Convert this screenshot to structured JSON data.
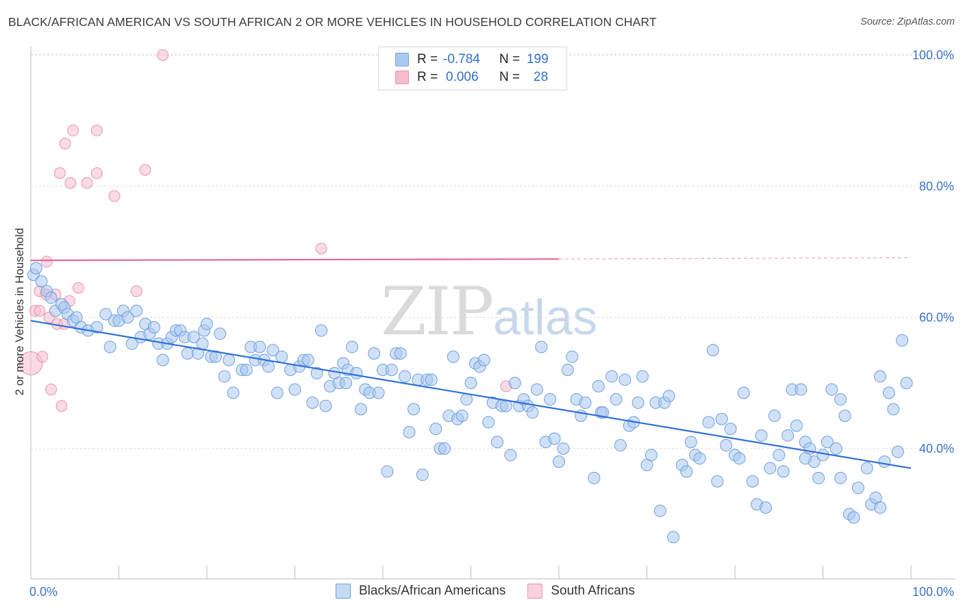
{
  "title": "BLACK/AFRICAN AMERICAN VS SOUTH AFRICAN 2 OR MORE VEHICLES IN HOUSEHOLD CORRELATION CHART",
  "source": "Source: ZipAtlas.com",
  "watermark": {
    "zip": "ZIP",
    "atlas": "atlas"
  },
  "legend": {
    "rows": [
      {
        "r_label": "R =",
        "r_value": "-0.784",
        "n_label": "N =",
        "n_value": "199"
      },
      {
        "r_label": "R =",
        "r_value": "0.006",
        "n_label": "N =",
        "n_value": "28"
      }
    ]
  },
  "bottom_legend": [
    "Blacks/African Americans",
    "South Africans"
  ],
  "colors": {
    "blue_fill": "#a9c8f0",
    "blue_stroke": "#6f9fdc",
    "blue_line": "#2f6fd6",
    "pink_fill": "#f6bccd",
    "pink_stroke": "#e795ae",
    "pink_line": "#e5679a",
    "grid": "#dcdcdc",
    "axis_text": "#3a73c9"
  },
  "chart_data": {
    "type": "scatter",
    "title": "BLACK/AFRICAN AMERICAN VS SOUTH AFRICAN 2 OR MORE VEHICLES IN HOUSEHOLD CORRELATION CHART",
    "xlabel": "",
    "ylabel": "2 or more Vehicles in Household",
    "xlim": [
      0,
      100
    ],
    "ylim": [
      20,
      102
    ],
    "x_tick_labels": [
      "0.0%",
      "100.0%"
    ],
    "y_ticks": [
      40,
      60,
      80,
      100
    ],
    "y_tick_labels": [
      "40.0%",
      "60.0%",
      "80.0%",
      "100.0%"
    ],
    "grid": true,
    "legend_position": "top-center",
    "series": [
      {
        "name": "Blacks/African Americans",
        "color": "#a9c8f0",
        "trend": {
          "x": [
            0,
            100
          ],
          "y": [
            59.5,
            37.0
          ],
          "r": -0.784,
          "n": 199
        },
        "points": [
          [
            0.3,
            66.5
          ],
          [
            0.6,
            67.5
          ],
          [
            1.2,
            65.5
          ],
          [
            1.8,
            64
          ],
          [
            2.3,
            63
          ],
          [
            2.8,
            61
          ],
          [
            3.5,
            62
          ],
          [
            3.8,
            61.5
          ],
          [
            4.2,
            60.5
          ],
          [
            4.8,
            59.5
          ],
          [
            5.2,
            60
          ],
          [
            5.7,
            58.5
          ],
          [
            6.5,
            58
          ],
          [
            7.5,
            58.5
          ],
          [
            8.5,
            60.5
          ],
          [
            9,
            55.5
          ],
          [
            9.5,
            59.5
          ],
          [
            10,
            59.5
          ],
          [
            10.5,
            61
          ],
          [
            11,
            60
          ],
          [
            11.5,
            56
          ],
          [
            12,
            61
          ],
          [
            12.5,
            57
          ],
          [
            13,
            59
          ],
          [
            13.5,
            57.5
          ],
          [
            14,
            58.5
          ],
          [
            14.5,
            56
          ],
          [
            15,
            53.5
          ],
          [
            15.5,
            56
          ],
          [
            16,
            57
          ],
          [
            16.5,
            58
          ],
          [
            17,
            58
          ],
          [
            17.5,
            57
          ],
          [
            17.8,
            54.5
          ],
          [
            18.5,
            57
          ],
          [
            19,
            54.5
          ],
          [
            19.5,
            56
          ],
          [
            19.7,
            58
          ],
          [
            20,
            59
          ],
          [
            20.5,
            54
          ],
          [
            21,
            54
          ],
          [
            21.5,
            57.5
          ],
          [
            22,
            51
          ],
          [
            22.5,
            53.5
          ],
          [
            23,
            48.5
          ],
          [
            24,
            52
          ],
          [
            24.5,
            52
          ],
          [
            25,
            55.5
          ],
          [
            25.5,
            53.5
          ],
          [
            26,
            55.5
          ],
          [
            26.5,
            53.5
          ],
          [
            27,
            52.5
          ],
          [
            27.5,
            55
          ],
          [
            28,
            48.5
          ],
          [
            28.5,
            54
          ],
          [
            29.5,
            52
          ],
          [
            30,
            49
          ],
          [
            30.5,
            52.5
          ],
          [
            31,
            53.5
          ],
          [
            31.5,
            53.5
          ],
          [
            32,
            47
          ],
          [
            32.5,
            51.5
          ],
          [
            33,
            58
          ],
          [
            33.5,
            46.5
          ],
          [
            34,
            49.5
          ],
          [
            34.5,
            51.5
          ],
          [
            35,
            50
          ],
          [
            35.5,
            53
          ],
          [
            35.8,
            50
          ],
          [
            36,
            52
          ],
          [
            36.5,
            55.5
          ],
          [
            37,
            51.5
          ],
          [
            37.5,
            46
          ],
          [
            38,
            49
          ],
          [
            38.5,
            48.5
          ],
          [
            39,
            54.5
          ],
          [
            39.5,
            48.5
          ],
          [
            40,
            52
          ],
          [
            40.5,
            36.5
          ],
          [
            41,
            52
          ],
          [
            41.5,
            54.5
          ],
          [
            42,
            54.5
          ],
          [
            42.5,
            51
          ],
          [
            43,
            42.5
          ],
          [
            43.5,
            46
          ],
          [
            44,
            50.5
          ],
          [
            44.5,
            36
          ],
          [
            45,
            50.5
          ],
          [
            45.5,
            50.5
          ],
          [
            46,
            43
          ],
          [
            46.5,
            40
          ],
          [
            47,
            40
          ],
          [
            47.5,
            45
          ],
          [
            48,
            54
          ],
          [
            48.5,
            44.5
          ],
          [
            49,
            45
          ],
          [
            49.5,
            47.5
          ],
          [
            50,
            50
          ],
          [
            50.5,
            53
          ],
          [
            51,
            52.5
          ],
          [
            51.5,
            53.5
          ],
          [
            52,
            44
          ],
          [
            52.5,
            47
          ],
          [
            53,
            41
          ],
          [
            53.5,
            46.5
          ],
          [
            54,
            46.5
          ],
          [
            54.5,
            39
          ],
          [
            55,
            50
          ],
          [
            55.5,
            46.5
          ],
          [
            56,
            47.5
          ],
          [
            56.5,
            46.5
          ],
          [
            57,
            45.5
          ],
          [
            57.5,
            49
          ],
          [
            58,
            55.5
          ],
          [
            58.5,
            41
          ],
          [
            59,
            47.5
          ],
          [
            59.5,
            41.5
          ],
          [
            60,
            38
          ],
          [
            60.5,
            40
          ],
          [
            61,
            52
          ],
          [
            61.5,
            54
          ],
          [
            62,
            47.5
          ],
          [
            62.5,
            45
          ],
          [
            63,
            47
          ],
          [
            64,
            35.5
          ],
          [
            64.5,
            49.5
          ],
          [
            64.8,
            45.5
          ],
          [
            65,
            45.5
          ],
          [
            66,
            51
          ],
          [
            66.5,
            47.5
          ],
          [
            67,
            40.5
          ],
          [
            67.5,
            50.5
          ],
          [
            68,
            43.5
          ],
          [
            68.5,
            44
          ],
          [
            69,
            47
          ],
          [
            69.5,
            51
          ],
          [
            70,
            37.5
          ],
          [
            70.5,
            39
          ],
          [
            71,
            47
          ],
          [
            71.5,
            30.5
          ],
          [
            72,
            47
          ],
          [
            72.5,
            48
          ],
          [
            73,
            26.5
          ],
          [
            74,
            37.5
          ],
          [
            74.5,
            36.5
          ],
          [
            75,
            41
          ],
          [
            75.5,
            39
          ],
          [
            76,
            38.5
          ],
          [
            77,
            44
          ],
          [
            77.5,
            55
          ],
          [
            78,
            35
          ],
          [
            78.5,
            44.5
          ],
          [
            79,
            40.5
          ],
          [
            79.5,
            43
          ],
          [
            80,
            39
          ],
          [
            80.5,
            38.5
          ],
          [
            81,
            48.5
          ],
          [
            82,
            35
          ],
          [
            82.5,
            31.5
          ],
          [
            83,
            42
          ],
          [
            83.5,
            31
          ],
          [
            84,
            37
          ],
          [
            84.5,
            45
          ],
          [
            85,
            39
          ],
          [
            85.5,
            36.5
          ],
          [
            86,
            42
          ],
          [
            86.5,
            49
          ],
          [
            87,
            43.5
          ],
          [
            87.5,
            49
          ],
          [
            88,
            41
          ],
          [
            88.5,
            40
          ],
          [
            89,
            38
          ],
          [
            89.5,
            35.5
          ],
          [
            90,
            39
          ],
          [
            90.5,
            41
          ],
          [
            91,
            49
          ],
          [
            91.5,
            40
          ],
          [
            92,
            35.5
          ],
          [
            92.5,
            45
          ],
          [
            93,
            30
          ],
          [
            93.5,
            29.5
          ],
          [
            94,
            34
          ],
          [
            95,
            37
          ],
          [
            95.5,
            31.5
          ],
          [
            96,
            32.5
          ],
          [
            96.5,
            31
          ],
          [
            97,
            38
          ],
          [
            97.5,
            48.5
          ],
          [
            98,
            46
          ],
          [
            98.5,
            39.5
          ],
          [
            99,
            56.5
          ],
          [
            99.5,
            50
          ],
          [
            96.5,
            51
          ],
          [
            92,
            47.5
          ],
          [
            88,
            38.5
          ]
        ]
      },
      {
        "name": "South Africans",
        "color": "#f6bccd",
        "trend": {
          "x": [
            0,
            60,
            100
          ],
          "y": [
            68.7,
            68.9,
            69.1
          ],
          "r": 0.006,
          "n": 28
        },
        "points": [
          [
            0,
            53
          ],
          [
            0.5,
            61
          ],
          [
            1,
            64
          ],
          [
            1.3,
            54
          ],
          [
            1.7,
            63.5
          ],
          [
            1.8,
            68.5
          ],
          [
            2.1,
            60
          ],
          [
            2.3,
            49
          ],
          [
            2.8,
            63.5
          ],
          [
            3,
            59
          ],
          [
            3.3,
            82
          ],
          [
            3.5,
            46.5
          ],
          [
            3.8,
            59
          ],
          [
            3.9,
            86.5
          ],
          [
            4.4,
            62.5
          ],
          [
            4.5,
            80.5
          ],
          [
            4.8,
            88.5
          ],
          [
            5.4,
            64.5
          ],
          [
            6.4,
            80.5
          ],
          [
            7.5,
            82
          ],
          [
            7.5,
            88.5
          ],
          [
            9.5,
            78.5
          ],
          [
            12,
            64
          ],
          [
            13,
            82.5
          ],
          [
            15,
            100
          ],
          [
            33,
            70.5
          ],
          [
            54,
            49.5
          ],
          [
            1,
            61
          ]
        ]
      }
    ]
  }
}
